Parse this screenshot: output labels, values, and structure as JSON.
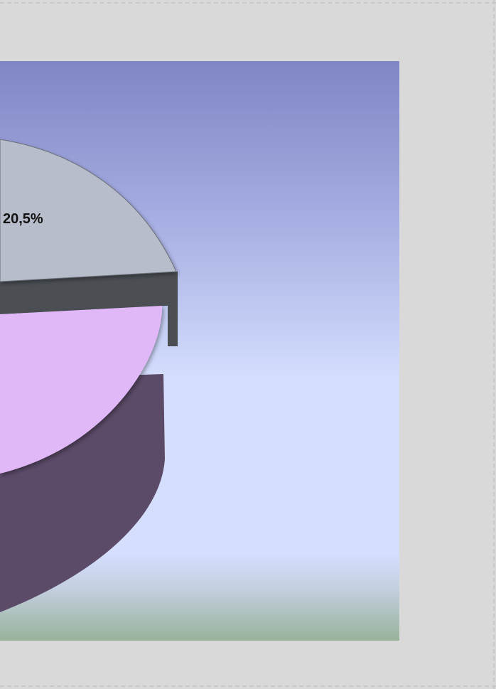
{
  "chart_data": {
    "type": "pie",
    "three_d": true,
    "slices": [
      {
        "label": "20,5%",
        "value": 20.5,
        "color": "#b8bdcb",
        "side_color": "#4b4f54"
      },
      {
        "label": "",
        "color": "#e0b8f8",
        "side_color": "#5b4a68"
      }
    ],
    "legend": "none",
    "grid": false
  },
  "colors": {
    "page_background": "#d9d9d9",
    "plot_gradient_top": "#7f86c4",
    "plot_gradient_middle": "#d5defe",
    "plot_gradient_bottom": "#97b39a"
  }
}
